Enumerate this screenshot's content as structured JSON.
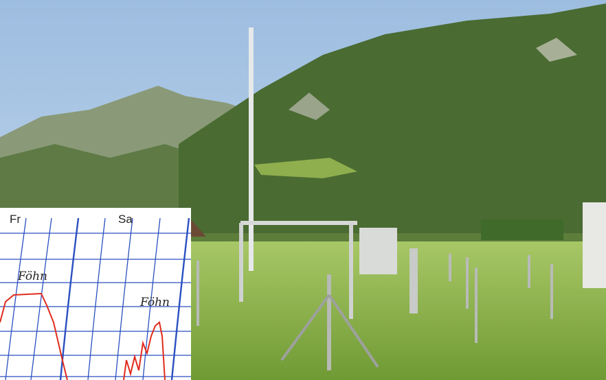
{
  "inset": {
    "day_labels": [
      "Fr",
      "Sa"
    ],
    "annotations": [
      "Föhn",
      "Föhn"
    ]
  }
}
